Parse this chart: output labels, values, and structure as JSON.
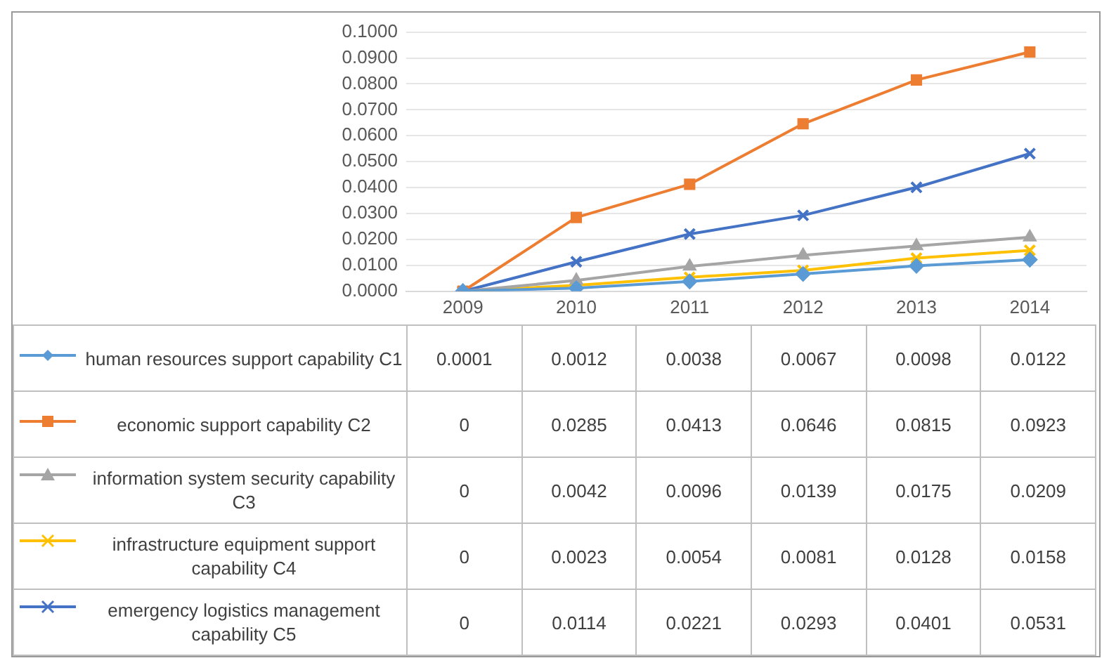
{
  "chart_data": {
    "type": "line",
    "categories": [
      "2009",
      "2010",
      "2011",
      "2012",
      "2013",
      "2014"
    ],
    "series": [
      {
        "name": "human resources support capability C1",
        "color": "#5b9bd5",
        "marker": "diamond",
        "values": [
          0.0001,
          0.0012,
          0.0038,
          0.0067,
          0.0098,
          0.0122
        ]
      },
      {
        "name": "economic support capability C2",
        "color": "#ed7d31",
        "marker": "square",
        "values": [
          0,
          0.0285,
          0.0413,
          0.0646,
          0.0815,
          0.0923
        ]
      },
      {
        "name": "information system security capability C3",
        "color": "#a5a5a5",
        "marker": "triangle",
        "values": [
          0,
          0.0042,
          0.0096,
          0.0139,
          0.0175,
          0.0209
        ]
      },
      {
        "name": "infrastructure equipment support capability C4",
        "color": "#ffc000",
        "marker": "cross",
        "values": [
          0,
          0.0023,
          0.0054,
          0.0081,
          0.0128,
          0.0158
        ]
      },
      {
        "name": "emergency logistics management capability C5",
        "color": "#4472c4",
        "marker": "cross",
        "values": [
          0,
          0.0114,
          0.0221,
          0.0293,
          0.0401,
          0.0531
        ]
      }
    ],
    "ylim": [
      0,
      0.1
    ],
    "yticks": [
      {
        "value": 0,
        "label": "0.0000"
      },
      {
        "value": 0.01,
        "label": "0.0100"
      },
      {
        "value": 0.02,
        "label": "0.0200"
      },
      {
        "value": 0.03,
        "label": "0.0300"
      },
      {
        "value": 0.04,
        "label": "0.0400"
      },
      {
        "value": 0.05,
        "label": "0.0500"
      },
      {
        "value": 0.06,
        "label": "0.0600"
      },
      {
        "value": 0.07,
        "label": "0.0700"
      },
      {
        "value": 0.08,
        "label": "0.0800"
      },
      {
        "value": 0.09,
        "label": "0.0900"
      },
      {
        "value": 0.1,
        "label": "0.1000"
      }
    ],
    "grid": "y",
    "legend": "bottom",
    "data_labels": true,
    "line_style": "solid"
  }
}
